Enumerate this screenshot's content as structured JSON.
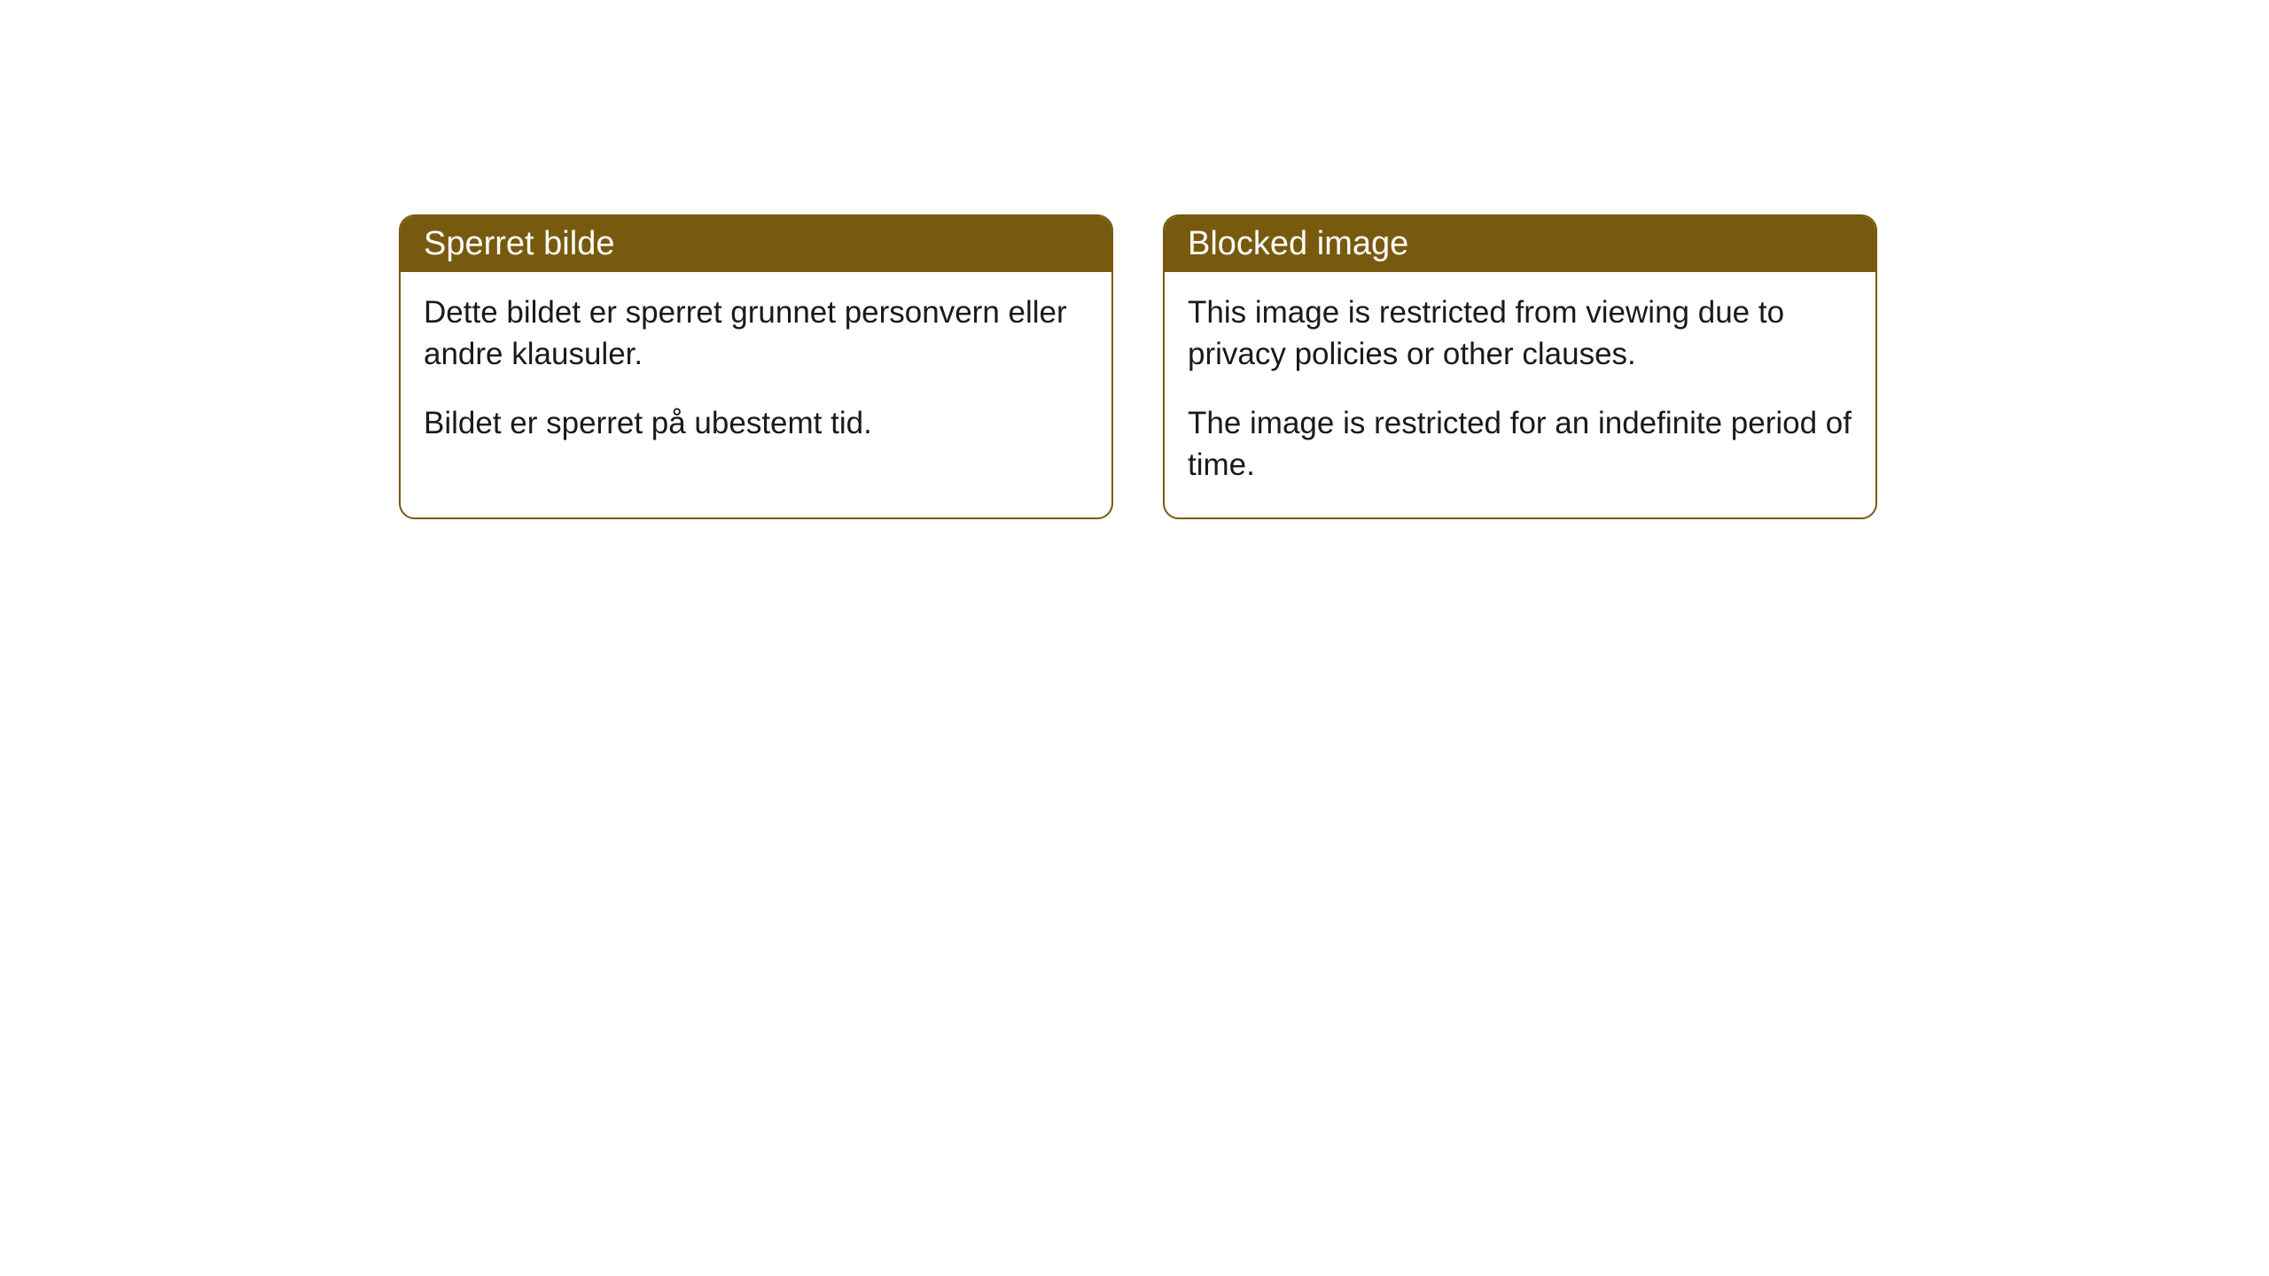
{
  "cards": [
    {
      "title": "Sperret bilde",
      "paragraph1": "Dette bildet er sperret grunnet personvern eller andre klausuler.",
      "paragraph2": "Bildet er sperret på ubestemt tid."
    },
    {
      "title": "Blocked image",
      "paragraph1": "This image is restricted from viewing due to privacy policies or other clauses.",
      "paragraph2": "The image is restricted for an indefinite period of time."
    }
  ],
  "colors": {
    "header_bg": "#785a0f",
    "header_text": "#ffffff",
    "body_bg": "#ffffff",
    "body_text": "#1a1a1a",
    "border": "#785a0f"
  }
}
